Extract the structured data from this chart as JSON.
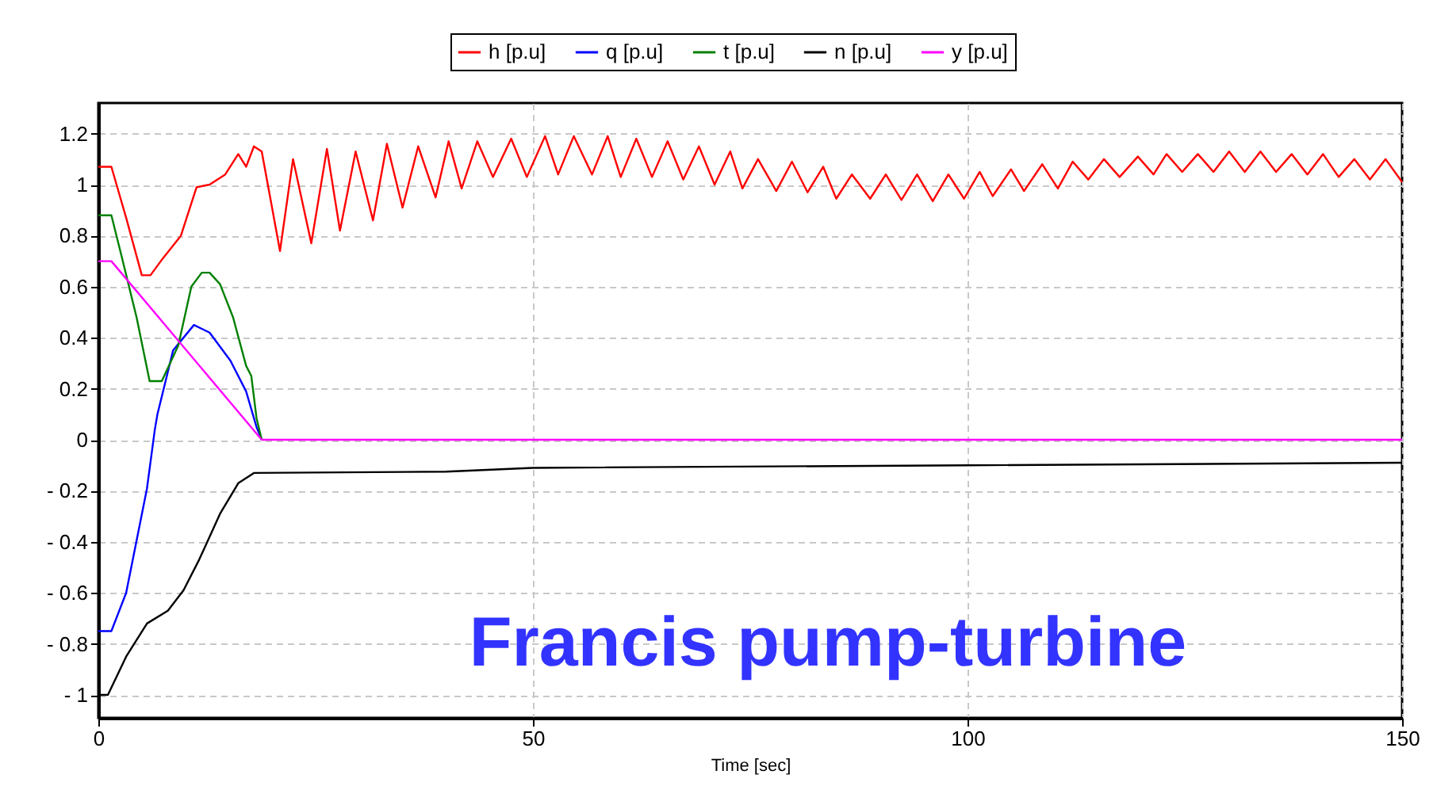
{
  "chart_data": {
    "type": "line",
    "xlabel": "Time [sec]",
    "xlim": [
      0,
      150
    ],
    "xticks": [
      0,
      50,
      100,
      150
    ],
    "ylim": [
      -1.09,
      1.32
    ],
    "yticks": [
      {
        "value": -1,
        "label": "- 1"
      },
      {
        "value": -0.8,
        "label": "- 0.8"
      },
      {
        "value": -0.6,
        "label": "- 0.6"
      },
      {
        "value": -0.4,
        "label": "- 0.4"
      },
      {
        "value": -0.2,
        "label": "- 0.2"
      },
      0,
      0.2,
      0.4,
      0.6,
      0.8,
      1,
      1.2
    ],
    "grid": true,
    "legend": "top",
    "line_style": "solid",
    "marker": "none",
    "annotations": [
      "Francis pump-turbine"
    ],
    "series": [
      {
        "name": "h [p.u]",
        "color": "#ff0000",
        "x": [
          0,
          1.5,
          3.2,
          5.0,
          6.0,
          7.4,
          9.5,
          11.3,
          12.8,
          14.6,
          16.1,
          17.0,
          17.9,
          18.8,
          20.9,
          22.4,
          24.5,
          26.3,
          27.8,
          29.6,
          31.6,
          33.2,
          35.0,
          36.8,
          38.8,
          40.3,
          41.8,
          43.6,
          45.4,
          47.5,
          49.3,
          51.4,
          52.9,
          54.7,
          56.8,
          58.6,
          60.1,
          61.9,
          63.7,
          65.5,
          67.3,
          69.1,
          70.9,
          72.7,
          74.1,
          75.9,
          78.0,
          79.8,
          81.6,
          83.4,
          84.9,
          86.7,
          88.8,
          90.6,
          92.4,
          94.2,
          96.0,
          97.8,
          99.6,
          101.4,
          102.9,
          105.0,
          106.5,
          108.6,
          110.4,
          112.1,
          113.9,
          115.7,
          117.5,
          119.6,
          121.4,
          122.9,
          124.7,
          126.5,
          128.3,
          130.1,
          131.9,
          133.7,
          135.5,
          137.3,
          139.1,
          140.9,
          142.7,
          144.5,
          146.3,
          148.1,
          150
        ],
        "values": [
          1.07,
          1.07,
          0.87,
          0.645,
          0.645,
          0.71,
          0.8,
          0.99,
          1.0,
          1.04,
          1.12,
          1.07,
          1.15,
          1.13,
          0.74,
          1.1,
          0.77,
          1.14,
          0.82,
          1.13,
          0.86,
          1.16,
          0.91,
          1.15,
          0.95,
          1.17,
          0.985,
          1.17,
          1.03,
          1.18,
          1.03,
          1.19,
          1.04,
          1.19,
          1.04,
          1.19,
          1.03,
          1.18,
          1.03,
          1.17,
          1.02,
          1.15,
          1.0,
          1.13,
          0.985,
          1.1,
          0.975,
          1.09,
          0.97,
          1.07,
          0.945,
          1.04,
          0.945,
          1.04,
          0.94,
          1.04,
          0.935,
          1.04,
          0.945,
          1.05,
          0.955,
          1.06,
          0.975,
          1.08,
          0.985,
          1.09,
          1.02,
          1.1,
          1.03,
          1.11,
          1.04,
          1.12,
          1.05,
          1.12,
          1.05,
          1.13,
          1.05,
          1.13,
          1.05,
          1.12,
          1.04,
          1.12,
          1.03,
          1.1,
          1.02,
          1.1,
          1.01
        ]
      },
      {
        "name": "q [p.u]",
        "color": "#0000ff",
        "x": [
          0,
          1.5,
          3.2,
          5.6,
          6.5,
          6.8,
          8.6,
          11.0,
          12.8,
          15.2,
          17.0,
          18.2,
          18.8
        ],
        "values": [
          -0.75,
          -0.75,
          -0.6,
          -0.19,
          0.04,
          0.1,
          0.35,
          0.45,
          0.42,
          0.31,
          0.19,
          0.05,
          0
        ]
      },
      {
        "name": "t [p.u]",
        "color": "#008000",
        "x": [
          0,
          1.5,
          2.6,
          4.4,
          5.9,
          7.3,
          9.2,
          10.7,
          11.9,
          12.8,
          14.0,
          15.5,
          17.0,
          17.6,
          18.2,
          18.8
        ],
        "values": [
          0.88,
          0.88,
          0.73,
          0.48,
          0.23,
          0.23,
          0.37,
          0.6,
          0.655,
          0.655,
          0.61,
          0.48,
          0.29,
          0.25,
          0.085,
          0
        ]
      },
      {
        "name": "n [p.u]",
        "color": "#000000",
        "x": [
          0,
          1.1,
          3.2,
          5.6,
          8.0,
          9.8,
          11.6,
          14.0,
          16.1,
          17.9,
          40,
          50,
          100,
          150
        ],
        "values": [
          -1.0,
          -1.0,
          -0.85,
          -0.72,
          -0.67,
          -0.59,
          -0.47,
          -0.29,
          -0.17,
          -0.13,
          -0.125,
          -0.11,
          -0.1,
          -0.09
        ]
      },
      {
        "name": "y [p.u]",
        "color": "#ff00ff",
        "x": [
          0,
          1.5,
          18.8,
          150
        ],
        "values": [
          0.7,
          0.7,
          0,
          0
        ]
      }
    ]
  }
}
